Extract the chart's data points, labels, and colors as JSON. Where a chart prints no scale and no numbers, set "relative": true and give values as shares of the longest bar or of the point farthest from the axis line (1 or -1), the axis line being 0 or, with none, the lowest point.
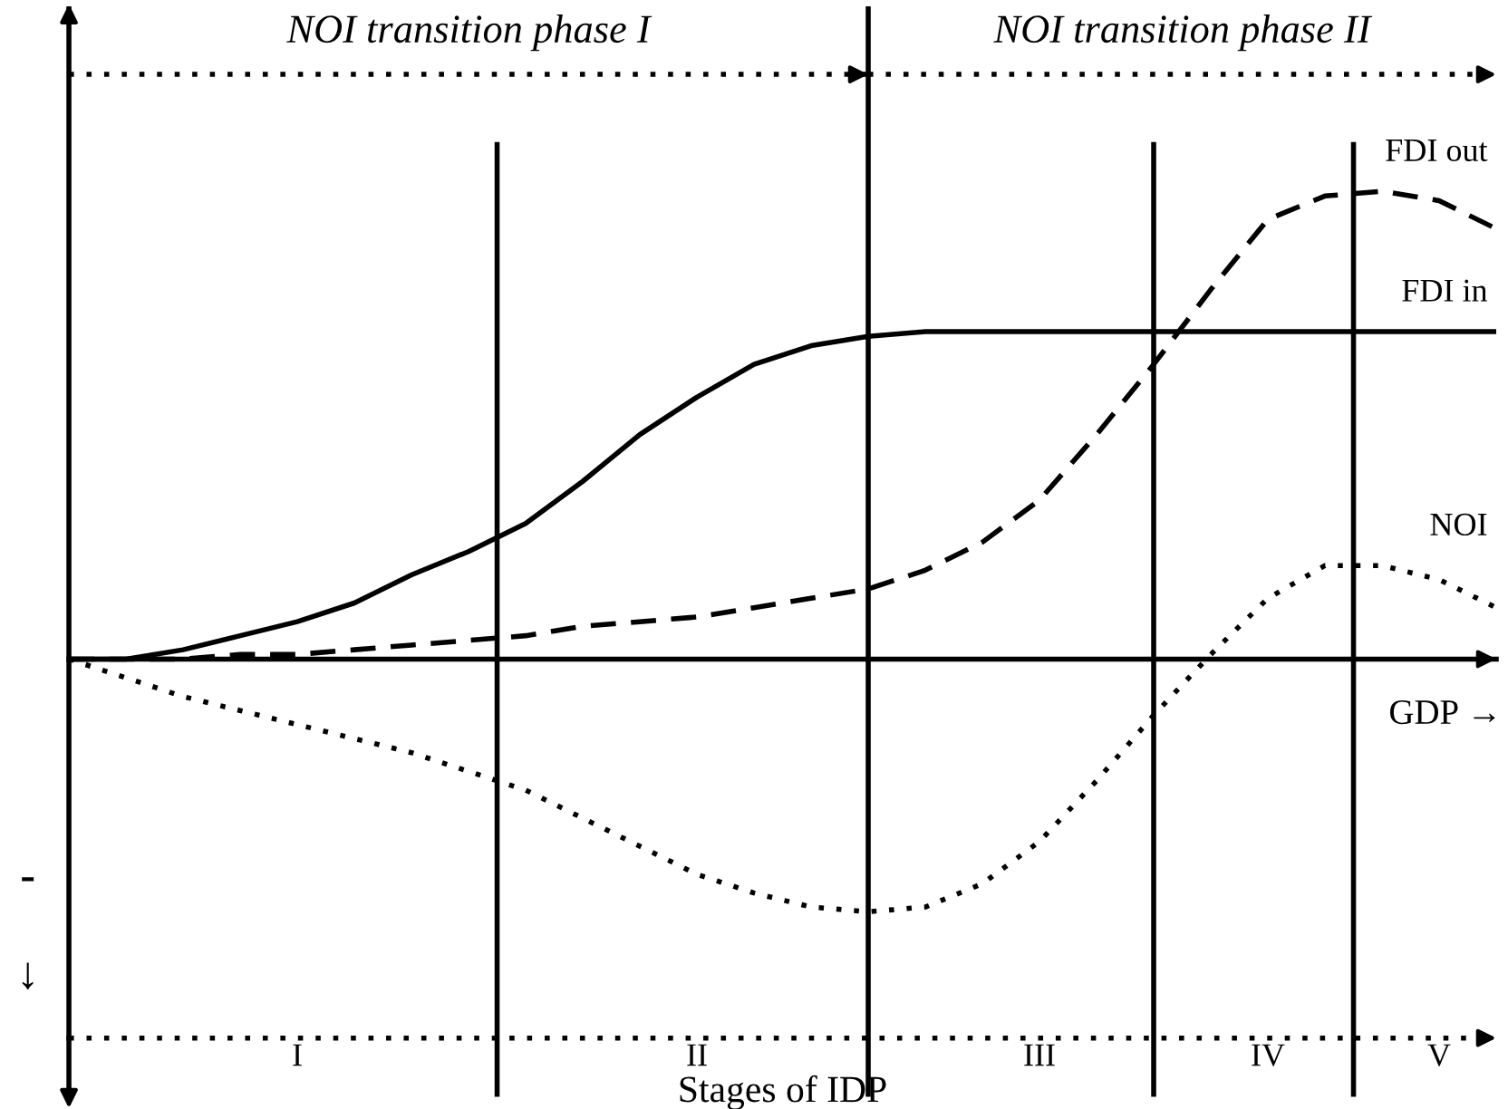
{
  "chart_data": {
    "type": "line",
    "relative": true,
    "xlabel": "Stages of IDP",
    "legend": false,
    "categories": [
      null,
      null,
      null,
      null,
      "I",
      null,
      null,
      null,
      null,
      null,
      null,
      "II",
      null,
      null,
      null,
      null,
      null,
      "III",
      null,
      null,
      null,
      "IV",
      null,
      null,
      "V",
      null
    ],
    "series": [
      {
        "name": "FDI out",
        "color": "#000000",
        "line_style": "dashed",
        "values": [
          0,
          0,
          0,
          0.01,
          0.01,
          0.02,
          0.03,
          0.04,
          0.05,
          0.07,
          0.08,
          0.09,
          0.11,
          0.13,
          0.15,
          0.19,
          0.25,
          0.34,
          0.48,
          0.63,
          0.79,
          0.94,
          0.99,
          1.0,
          0.98,
          0.92
        ]
      },
      {
        "name": "FDI in",
        "color": "#000000",
        "line_style": "solid",
        "values": [
          0,
          0,
          0.02,
          0.05,
          0.08,
          0.12,
          0.18,
          0.23,
          0.29,
          0.38,
          0.48,
          0.56,
          0.63,
          0.67,
          0.69,
          0.7,
          0.7,
          0.7,
          0.7,
          0.7,
          0.7,
          0.7,
          0.7,
          0.7,
          0.7,
          0.7
        ]
      },
      {
        "name": "NOI",
        "color": "#000000",
        "line_style": "dotted",
        "values": [
          0,
          -0.04,
          -0.08,
          -0.11,
          -0.14,
          -0.17,
          -0.2,
          -0.24,
          -0.28,
          -0.34,
          -0.4,
          -0.46,
          -0.5,
          -0.53,
          -0.54,
          -0.53,
          -0.48,
          -0.39,
          -0.26,
          -0.12,
          0.01,
          0.13,
          0.2,
          0.2,
          0.17,
          0.11
        ]
      }
    ],
    "ref_lines": [
      {
        "axis": "y",
        "value": -0.81,
        "label": null,
        "color": "#000000",
        "line_style": "dotted"
      }
    ],
    "annotations": [
      "NOI transition phase I",
      "NOI transition phase II",
      "GDP →",
      "-",
      "↓"
    ]
  }
}
